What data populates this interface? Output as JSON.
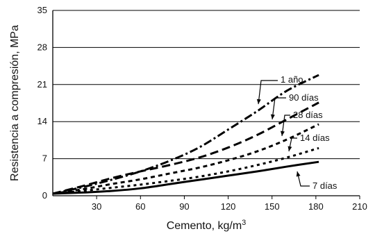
{
  "chart_data": {
    "type": "line",
    "title": "",
    "xlabel": "Cemento, kg/m",
    "xlabel_superscript": "3",
    "ylabel": "Resistencia a compresión, MPa",
    "xlim": [
      0,
      210
    ],
    "ylim": [
      0,
      35
    ],
    "xticks": [
      "30",
      "60",
      "90",
      "120",
      "150",
      "180",
      "210"
    ],
    "yticks": [
      "0",
      "7",
      "14",
      "21",
      "28",
      "35"
    ],
    "grid": "horizontal",
    "legend": "inline",
    "series": [
      {
        "name": "1 año",
        "style": "dash-dot",
        "x": [
          0,
          20,
          40,
          60,
          80,
          100,
          120,
          140,
          160,
          182
        ],
        "y": [
          0.4,
          1.6,
          3.0,
          4.6,
          6.6,
          9.1,
          12.5,
          16.0,
          19.8,
          22.8
        ]
      },
      {
        "name": "90 días",
        "style": "long-dash",
        "x": [
          0,
          20,
          40,
          60,
          80,
          100,
          120,
          140,
          160,
          182
        ],
        "y": [
          0.4,
          1.8,
          3.3,
          4.6,
          5.8,
          7.2,
          9.1,
          11.5,
          14.4,
          17.6
        ]
      },
      {
        "name": "28 días",
        "style": "short-dash",
        "x": [
          0,
          20,
          40,
          60,
          80,
          100,
          120,
          140,
          160,
          182
        ],
        "y": [
          0.4,
          1.2,
          2.2,
          3.1,
          4.2,
          5.3,
          6.7,
          8.4,
          10.6,
          13.5
        ]
      },
      {
        "name": "14 días",
        "style": "dotted",
        "x": [
          0,
          20,
          40,
          60,
          80,
          100,
          120,
          140,
          160,
          182
        ],
        "y": [
          0.4,
          0.9,
          1.5,
          2.1,
          2.8,
          3.6,
          4.6,
          5.8,
          7.2,
          9.0
        ]
      },
      {
        "name": "7 días",
        "style": "solid",
        "x": [
          0,
          20,
          40,
          60,
          80,
          100,
          120,
          140,
          160,
          182
        ],
        "y": [
          0.4,
          0.6,
          0.9,
          1.4,
          2.2,
          3.0,
          3.8,
          4.6,
          5.5,
          6.4
        ]
      }
    ]
  }
}
